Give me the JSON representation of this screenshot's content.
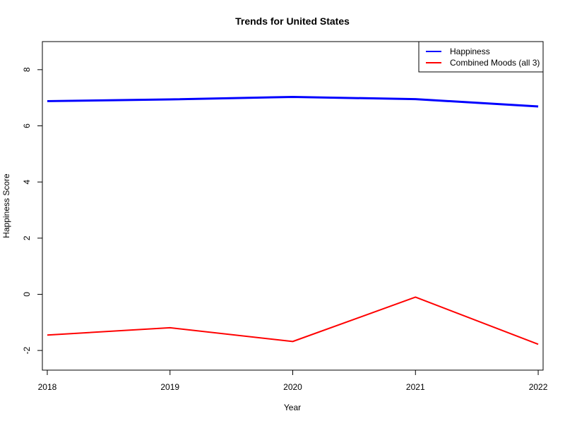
{
  "chart_data": {
    "type": "line",
    "title": "Trends for United States",
    "xlabel": "Year",
    "ylabel": "Happiness Score",
    "x": [
      2018,
      2019,
      2020,
      2021,
      2022
    ],
    "xticks": [
      2018,
      2019,
      2020,
      2021,
      2022
    ],
    "yticks": [
      -2,
      0,
      2,
      4,
      6,
      8
    ],
    "xlim": [
      2017.96,
      2022.04
    ],
    "ylim": [
      -2.7,
      9.0
    ],
    "grid": false,
    "legend_position": "top-right",
    "series": [
      {
        "name": "Happiness",
        "color": "#0000ff",
        "values": [
          6.88,
          6.94,
          7.03,
          6.95,
          6.69
        ]
      },
      {
        "name": "Combined Moods (all 3)",
        "color": "#ff0000",
        "values": [
          -1.45,
          -1.19,
          -1.68,
          -0.1,
          -1.78
        ]
      }
    ]
  }
}
